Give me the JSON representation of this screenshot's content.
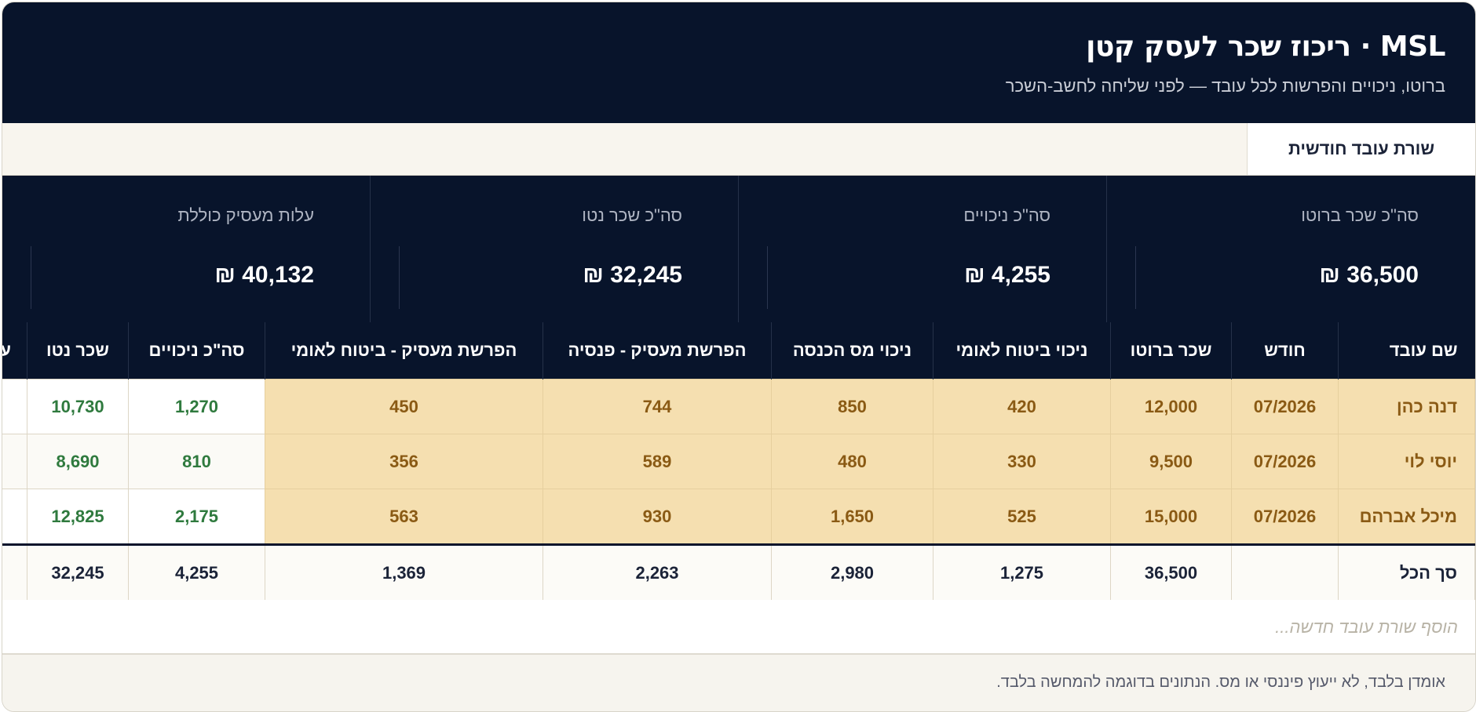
{
  "app": {
    "title": "MSL · ריכוז שכר לעסק קטן",
    "subtitle": "ברוטו, ניכויים והפרשות לכל עובד — לפני שליחה לחשב-השכר"
  },
  "tabs": [
    {
      "label": "שורת עובד חודשית",
      "active": true
    }
  ],
  "stats": [
    {
      "label": "סה\"כ שכר ברוטו",
      "value": "36,500 ₪"
    },
    {
      "label": "סה\"כ ניכויים",
      "value": "4,255 ₪"
    },
    {
      "label": "סה\"כ שכר נטו",
      "value": "32,245 ₪"
    },
    {
      "label": "עלות מעסיק כוללת",
      "value": "40,132 ₪"
    }
  ],
  "table": {
    "columns": [
      "שם עובד",
      "חודש",
      "שכר ברוטו",
      "ניכוי ביטוח לאומי",
      "ניכוי מס הכנסה",
      "הפרשת מעסיק - פנסיה",
      "הפרשת מעסיק - ביטוח לאומי",
      "סה\"כ ניכויים",
      "שכר נטו",
      "עלות מעסיק כוללת"
    ],
    "rows": [
      {
        "name": "דנה כהן",
        "month": "07/2026",
        "gross": "12,000",
        "ni": "420",
        "tax": "850",
        "pension": "744",
        "empni": "450",
        "deductions": "1,270",
        "net": "10,730"
      },
      {
        "name": "יוסי לוי",
        "month": "07/2026",
        "gross": "9,500",
        "ni": "330",
        "tax": "480",
        "pension": "589",
        "empni": "356",
        "deductions": "810",
        "net": "8,690"
      },
      {
        "name": "מיכל אברהם",
        "month": "07/2026",
        "gross": "15,000",
        "ni": "525",
        "tax": "1,650",
        "pension": "930",
        "empni": "563",
        "deductions": "2,175",
        "net": "12,825"
      }
    ],
    "total": {
      "label": "סך הכל",
      "month": "",
      "gross": "36,500",
      "ni": "1,275",
      "tax": "2,980",
      "pension": "2,263",
      "empni": "1,369",
      "deductions": "4,255",
      "net": "32,245"
    }
  },
  "add_row": {
    "placeholder": "הוסף שורת עובד חדשה..."
  },
  "footer": {
    "note": "אומדן בלבד, לא ייעוץ פיננסי או מס. הנתונים בדוגמה להמחשה בלבד."
  },
  "colors": {
    "navy": "#08142b",
    "highlight": "#f5dfb0",
    "highlight_text": "#8a5a14",
    "green": "#2f7a3e"
  }
}
